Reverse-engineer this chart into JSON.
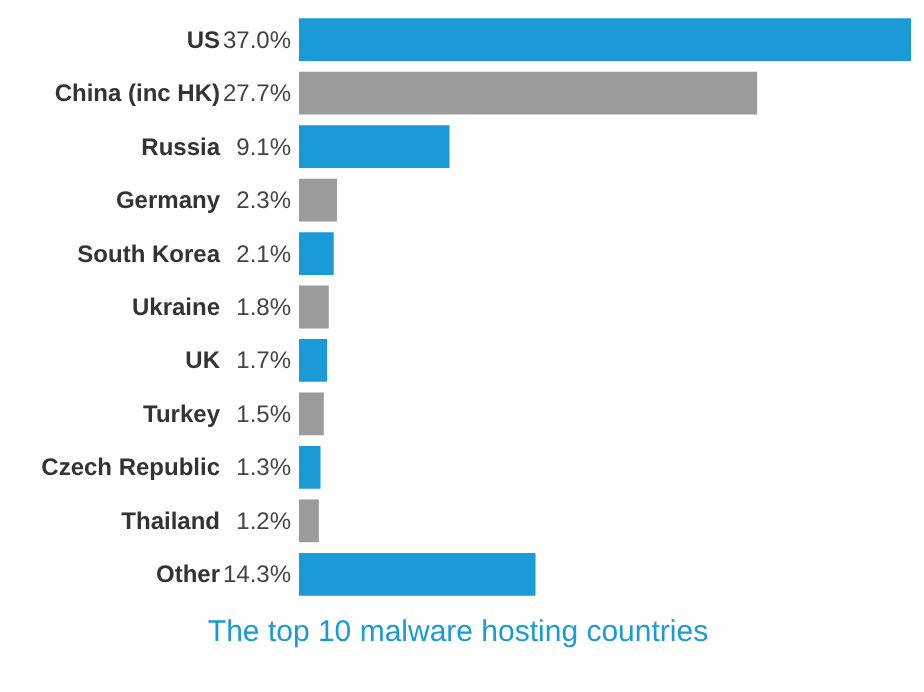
{
  "chart_data": {
    "type": "bar",
    "orientation": "horizontal",
    "title": "The top 10 malware hosting countries",
    "categories": [
      "US",
      "China (inc HK)",
      "Russia",
      "Germany",
      "South Korea",
      "Ukraine",
      "UK",
      "Turkey",
      "Czech Republic",
      "Thailand",
      "Other"
    ],
    "values": [
      37.0,
      27.7,
      9.1,
      2.3,
      2.1,
      1.8,
      1.7,
      1.5,
      1.3,
      1.2,
      14.3
    ],
    "value_labels": [
      "37.0%",
      "27.7%",
      "9.1%",
      "2.3%",
      "2.1%",
      "1.8%",
      "1.7%",
      "1.5%",
      "1.3%",
      "1.2%",
      "14.3%"
    ],
    "colors": [
      "#1b9ad8",
      "#9b9b9b",
      "#1b9ad8",
      "#9b9b9b",
      "#1b9ad8",
      "#9b9b9b",
      "#1b9ad8",
      "#9b9b9b",
      "#1b9ad8",
      "#9b9b9b",
      "#1b9ad8"
    ],
    "tick_labels": false,
    "grid": false
  }
}
